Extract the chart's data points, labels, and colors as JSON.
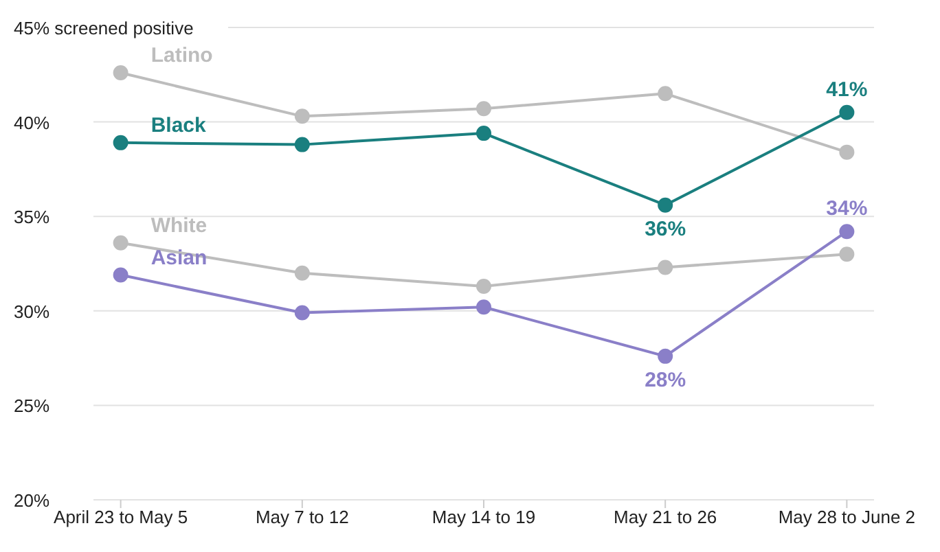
{
  "chart_data": {
    "type": "line",
    "categories": [
      "April 23 to May 5",
      "May 7 to 12",
      "May 14 to 19",
      "May 21 to 26",
      "May 28 to June 2"
    ],
    "series": [
      {
        "name": "Latino",
        "color": "#bdbdbd",
        "values": [
          42.6,
          40.3,
          40.7,
          41.5,
          38.4
        ]
      },
      {
        "name": "Black",
        "color": "#1a7f7f",
        "values": [
          38.9,
          38.8,
          39.4,
          35.6,
          40.5
        ],
        "value_labels": [
          null,
          null,
          null,
          "36%",
          "41%"
        ]
      },
      {
        "name": "White",
        "color": "#bdbdbd",
        "values": [
          33.6,
          32.0,
          31.3,
          32.3,
          33.0
        ]
      },
      {
        "name": "Asian",
        "color": "#8a7fc8",
        "values": [
          31.9,
          29.9,
          30.2,
          27.6,
          34.2
        ],
        "value_labels": [
          null,
          null,
          null,
          "28%",
          "34%"
        ]
      }
    ],
    "ylim": [
      20,
      45
    ],
    "yticks": [
      {
        "value": 20,
        "label": "20%"
      },
      {
        "value": 25,
        "label": "25%"
      },
      {
        "value": 30,
        "label": "30%"
      },
      {
        "value": 35,
        "label": "35%"
      },
      {
        "value": 40,
        "label": "40%"
      },
      {
        "value": 45,
        "label": "45% screened positive"
      }
    ],
    "grid": "y",
    "marker": "circle",
    "line_style": "solid"
  }
}
